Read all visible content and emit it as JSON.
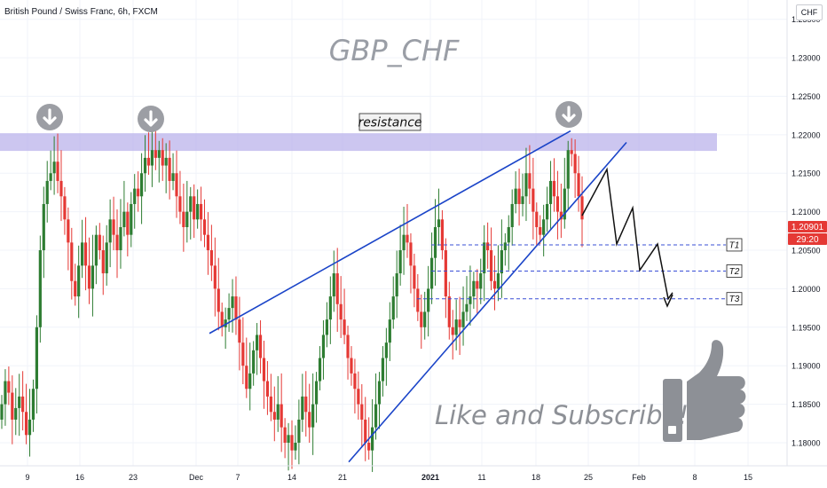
{
  "header": {
    "symbol": "British Pound / Swiss Franc, 6h, FXCM",
    "currency": "CHF"
  },
  "watermark": "GBP_CHF",
  "resistance_label": "resistance",
  "targets": [
    "T1",
    "T2",
    "T3"
  ],
  "cta_text": "Like and Subscribe!",
  "price_badge": {
    "value": "1.20901",
    "countdown": "29:20",
    "color": "#e53935"
  },
  "colors": {
    "up": "#2e7d32",
    "down": "#e53935",
    "trendline": "#1a44c8",
    "zone": "#b9b0ea",
    "target_line": "#3a4fd6"
  },
  "icons": [
    "arrow-down-circle-icon",
    "thumbs-up-icon"
  ],
  "chart_data": {
    "type": "candlestick",
    "title": "British Pound / Swiss Franc, 6h, FXCM",
    "y_ticks": [
      "1.23500",
      "1.23000",
      "1.22500",
      "1.22000",
      "1.21500",
      "1.21000",
      "1.20500",
      "1.20000",
      "1.19500",
      "1.19000",
      "1.18500",
      "1.18000"
    ],
    "x_ticks": [
      "9",
      "16",
      "23",
      "Dec",
      "7",
      "14",
      "21",
      "2021",
      "11",
      "18",
      "25",
      "Feb",
      "8",
      "15"
    ],
    "ylim": [
      1.177,
      1.2375
    ],
    "resistance_zone": [
      1.2179,
      1.2202
    ],
    "target_levels": [
      1.2057,
      1.2023,
      1.1987
    ],
    "trendlines": [
      {
        "from": [
          "Dec",
          1.1942
        ],
        "to": [
          "Jan 22",
          1.2205
        ]
      },
      {
        "from": [
          "Dec 21",
          1.1775
        ],
        "to": [
          "Jan 27",
          1.219
        ]
      }
    ],
    "projection": [
      1.2095,
      1.2155,
      1.2058,
      1.2105,
      1.2024,
      1.2058,
      1.1987,
      1.1995
    ],
    "closes": [
      1.185,
      1.188,
      1.1865,
      1.183,
      1.1845,
      1.186,
      1.184,
      1.181,
      1.183,
      1.187,
      1.195,
      1.205,
      1.211,
      1.214,
      1.215,
      1.2165,
      1.214,
      1.212,
      1.209,
      1.206,
      1.201,
      1.199,
      1.203,
      1.206,
      1.203,
      1.2,
      1.203,
      1.207,
      1.205,
      1.202,
      1.206,
      1.209,
      1.207,
      1.205,
      1.208,
      1.21,
      1.207,
      1.211,
      1.213,
      1.212,
      1.215,
      1.217,
      1.216,
      1.218,
      1.217,
      1.218,
      1.216,
      1.217,
      1.214,
      1.215,
      1.212,
      1.21,
      1.208,
      1.21,
      1.212,
      1.209,
      1.211,
      1.209,
      1.207,
      1.205,
      1.203,
      1.2,
      1.197,
      1.195,
      1.196,
      1.1975,
      1.199,
      1.196,
      1.193,
      1.19,
      1.187,
      1.189,
      1.192,
      1.194,
      1.191,
      1.188,
      1.186,
      1.184,
      1.183,
      1.185,
      1.182,
      1.18,
      1.181,
      1.179,
      1.18,
      1.183,
      1.186,
      1.184,
      1.182,
      1.185,
      1.188,
      1.191,
      1.194,
      1.196,
      1.199,
      1.202,
      1.198,
      1.196,
      1.194,
      1.191,
      1.189,
      1.187,
      1.185,
      1.183,
      1.18,
      1.179,
      1.182,
      1.185,
      1.188,
      1.191,
      1.193,
      1.196,
      1.199,
      1.202,
      1.205,
      1.207,
      1.206,
      1.203,
      1.2,
      1.197,
      1.195,
      1.197,
      1.2,
      1.204,
      1.208,
      1.209,
      1.205,
      1.199,
      1.195,
      1.194,
      1.196,
      1.195,
      1.197,
      1.198,
      1.199,
      1.201,
      1.2,
      1.202,
      1.206,
      1.205,
      1.201,
      1.2,
      1.202,
      1.205,
      1.206,
      1.208,
      1.211,
      1.213,
      1.211,
      1.212,
      1.215,
      1.213,
      1.21,
      1.208,
      1.207,
      1.209,
      1.211,
      1.214,
      1.212,
      1.21,
      1.209,
      1.213,
      1.218,
      1.2175,
      1.215,
      1.212,
      1.209
    ]
  }
}
